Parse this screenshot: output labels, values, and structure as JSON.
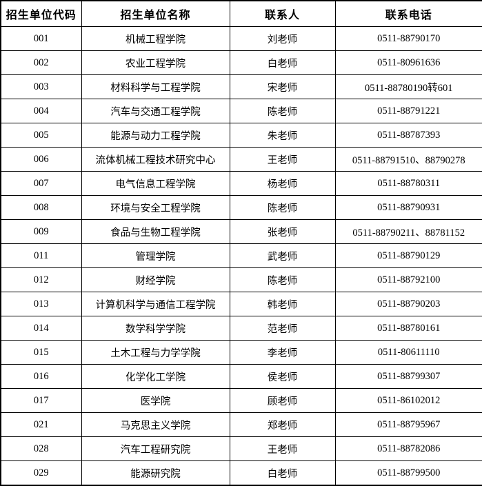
{
  "page": {
    "background_color": "#ffffff",
    "text_color": "#000000",
    "border_color": "#000000"
  },
  "table": {
    "headers": [
      "招生单位代码",
      "招生单位名称",
      "联系人",
      "联系电话"
    ],
    "rows": [
      [
        "001",
        "机械工程学院",
        "刘老师",
        "0511-88790170"
      ],
      [
        "002",
        "农业工程学院",
        "白老师",
        "0511-80961636"
      ],
      [
        "003",
        "材料科学与工程学院",
        "宋老师",
        "0511-88780190转601"
      ],
      [
        "004",
        "汽车与交通工程学院",
        "陈老师",
        "0511-88791221"
      ],
      [
        "005",
        "能源与动力工程学院",
        "朱老师",
        "0511-88787393"
      ],
      [
        "006",
        "流体机械工程技术研究中心",
        "王老师",
        "0511-88791510、88790278"
      ],
      [
        "007",
        "电气信息工程学院",
        "杨老师",
        "0511-88780311"
      ],
      [
        "008",
        "环境与安全工程学院",
        "陈老师",
        "0511-88790931"
      ],
      [
        "009",
        "食品与生物工程学院",
        "张老师",
        "0511-88790211、88781152"
      ],
      [
        "011",
        "管理学院",
        "武老师",
        "0511-88790129"
      ],
      [
        "012",
        "财经学院",
        "陈老师",
        "0511-88792100"
      ],
      [
        "013",
        "计算机科学与通信工程学院",
        "韩老师",
        "0511-88790203"
      ],
      [
        "014",
        "数学科学学院",
        "范老师",
        "0511-88780161"
      ],
      [
        "015",
        "土木工程与力学学院",
        "李老师",
        "0511-80611110"
      ],
      [
        "016",
        "化学化工学院",
        "侯老师",
        "0511-88799307"
      ],
      [
        "017",
        "医学院",
        "顾老师",
        "0511-86102012"
      ],
      [
        "021",
        "马克思主义学院",
        "郑老师",
        "0511-88795967"
      ],
      [
        "028",
        "汽车工程研究院",
        "王老师",
        "0511-88782086"
      ],
      [
        "029",
        "能源研究院",
        "白老师",
        "0511-88799500"
      ]
    ]
  }
}
